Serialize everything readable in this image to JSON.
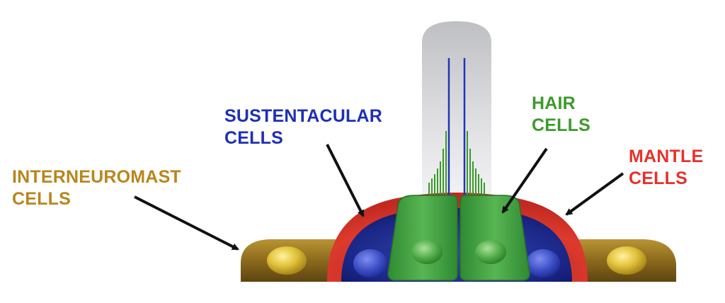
{
  "labels": {
    "sustentacular": {
      "line1": "SUSTENTACULAR",
      "line2": "CELLS",
      "color": "#1f2fb4"
    },
    "hair": {
      "line1": "HAIR",
      "line2": "CELLS",
      "color": "#3c9a2c"
    },
    "mantle": {
      "line1": "MANTLE",
      "line2": "CELLS",
      "color": "#e5322b"
    },
    "interneuromast": {
      "line1": "INTERNEUROMAST",
      "line2": "CELLS",
      "color": "#b8861c"
    }
  },
  "colors": {
    "mantle_cell": "#d8382e",
    "sustentacular_cell": "#1c2a8c",
    "hair_cell": "#3f9c3c",
    "interneuromast_cell": "#8f6a1c",
    "nucleus_gold": "#e0c23a",
    "cupula": "#d9d9dc",
    "kinocilium": "#2334b8",
    "stereocilia": "#3a9a2a",
    "arrow": "#111111"
  }
}
